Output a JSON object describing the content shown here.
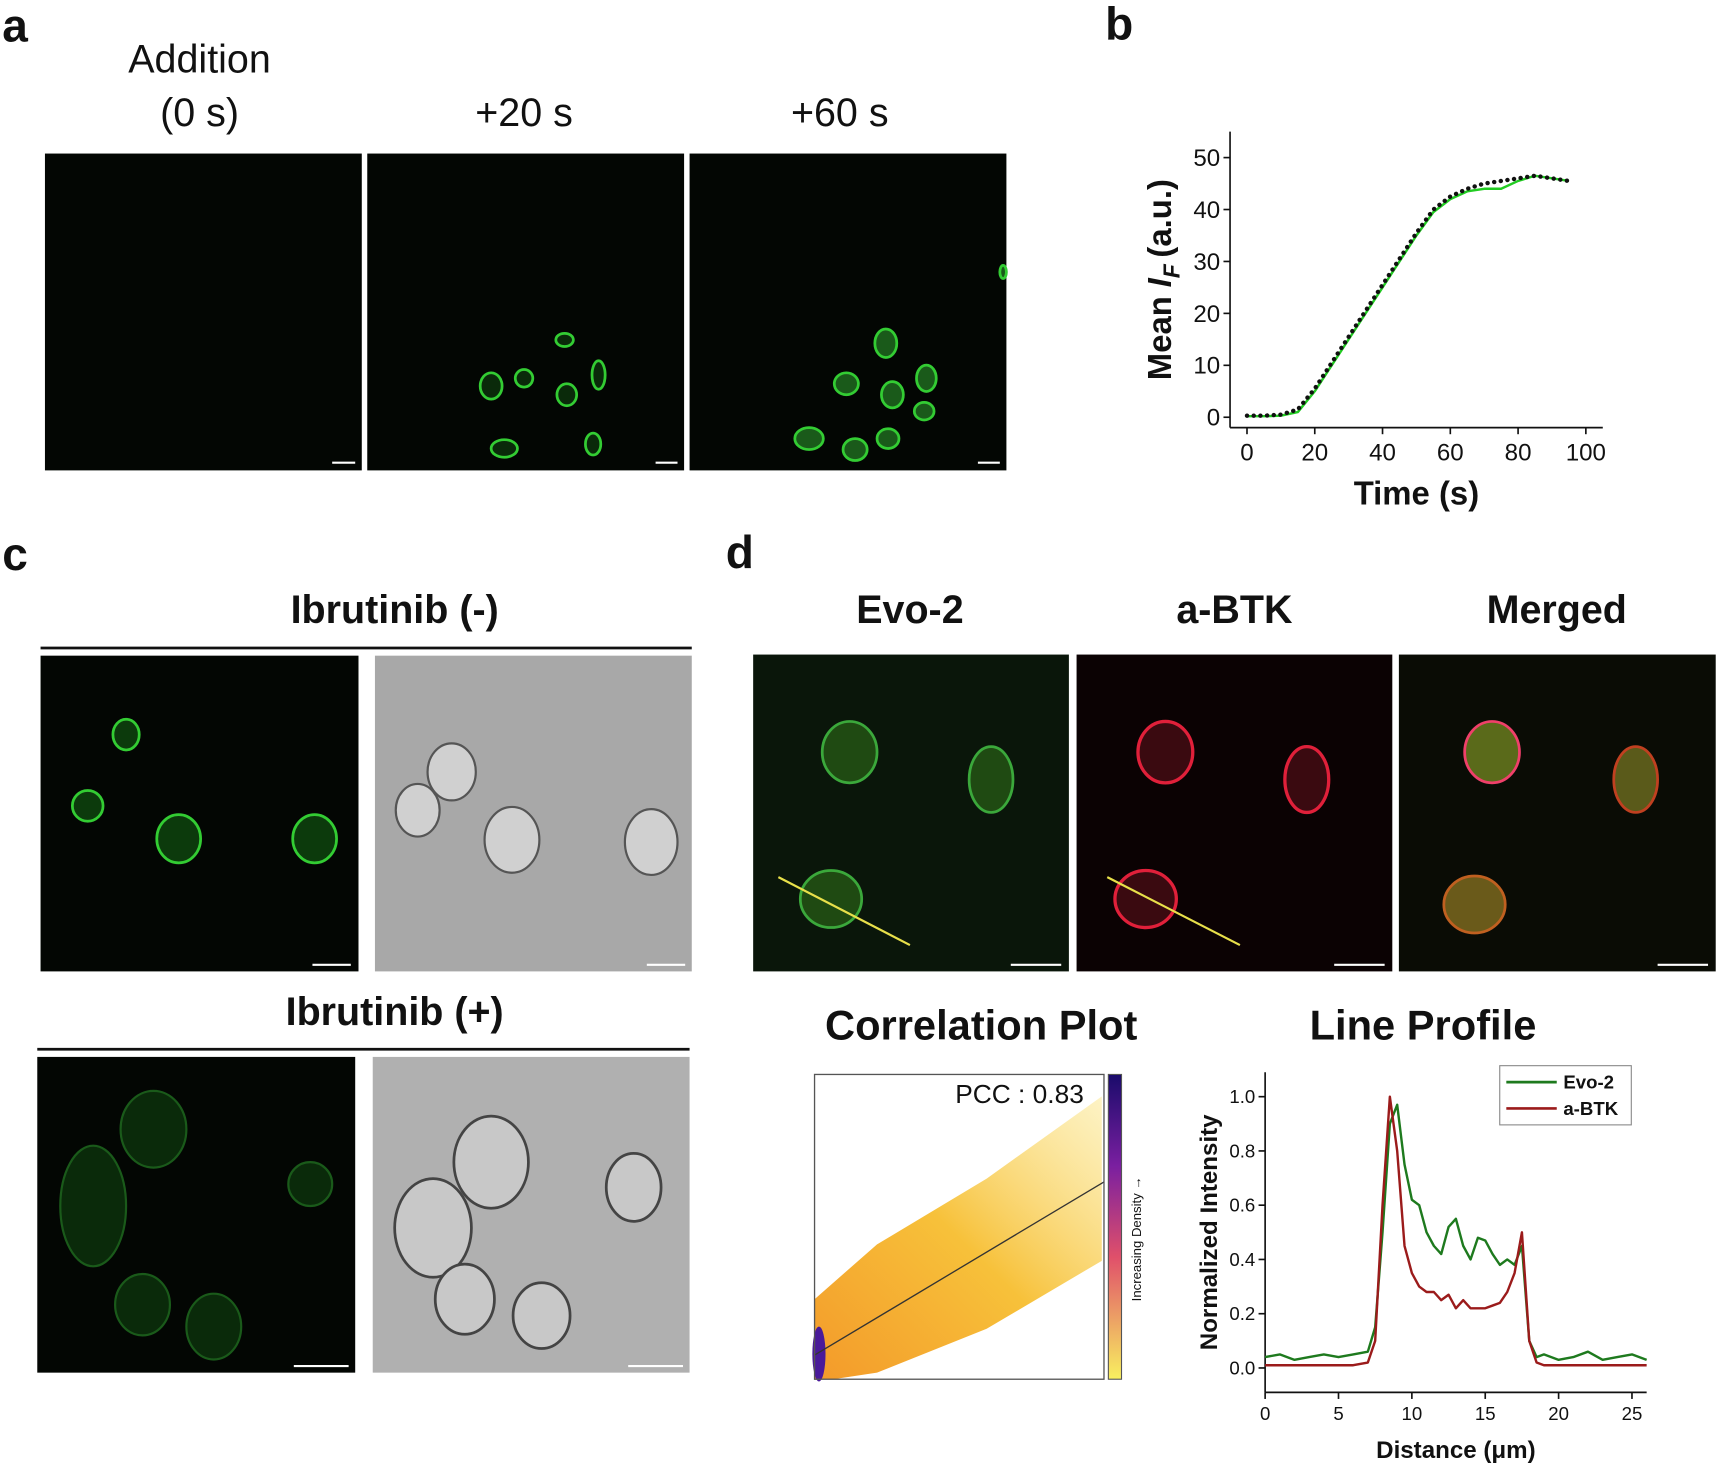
{
  "panel_labels": [
    "a",
    "b",
    "c",
    "d"
  ],
  "panel_a": {
    "titles": [
      [
        "Addition",
        "(0 s)"
      ],
      [
        "+20 s"
      ],
      [
        "+60 s"
      ]
    ]
  },
  "panel_c": {
    "titles": [
      "Ibrutinib (-)",
      "Ibrutinib (+)"
    ]
  },
  "panel_d": {
    "titles": [
      "Evo-2",
      "a-BTK",
      "Merged"
    ],
    "correlation_plot": {
      "title": "Correlation Plot",
      "annotation": "PCC : 0.83",
      "colorbar_label": "Increasing Density →"
    }
  },
  "chart_data": [
    {
      "type": "line",
      "x_label": "Time (s)",
      "y_label": {
        "text": "Mean",
        "symbol": "I",
        "subscript": "F",
        "unit": "(a.u.)"
      },
      "x": [
        0,
        5,
        10,
        15,
        20,
        25,
        30,
        35,
        40,
        45,
        50,
        55,
        60,
        65,
        70,
        75,
        80,
        85,
        90,
        95
      ],
      "series": [
        {
          "color": "#22cc22",
          "values": [
            0.2,
            0.2,
            0.3,
            1,
            5,
            10,
            15,
            20,
            25,
            30,
            35,
            39.5,
            42,
            43.5,
            44,
            44,
            45.5,
            46.5,
            46,
            45.5
          ]
        },
        {
          "color": "#111111",
          "dash": "dotted",
          "values": [
            0.3,
            0.3,
            0.5,
            1.5,
            5.5,
            10.5,
            15.5,
            20.5,
            25.5,
            30.5,
            35.5,
            40,
            42.5,
            44,
            45,
            45.5,
            46,
            46.5,
            46,
            45.5
          ]
        }
      ],
      "xlim": [
        -5,
        105
      ],
      "ylim": [
        -2,
        55
      ],
      "xticks": [
        0,
        20,
        40,
        60,
        80,
        100
      ],
      "yticks": [
        0,
        10,
        20,
        30,
        40,
        50
      ]
    },
    {
      "type": "line",
      "title": "Line Profile",
      "x_label": "Distance (μm)",
      "y_label": "Normalized Intensity",
      "x": [
        0,
        1,
        2,
        3,
        4,
        5,
        6,
        7,
        7.5,
        8,
        8.5,
        9,
        9.5,
        10,
        10.5,
        11,
        11.5,
        12,
        12.5,
        13,
        13.5,
        14,
        14.5,
        15,
        15.5,
        16,
        16.5,
        17,
        17.5,
        18,
        18.5,
        19,
        20,
        21,
        22,
        23,
        24,
        25,
        26
      ],
      "series": [
        {
          "name": "Evo-2",
          "color": "#1e7a1e",
          "values": [
            0.04,
            0.05,
            0.03,
            0.04,
            0.05,
            0.04,
            0.05,
            0.06,
            0.15,
            0.5,
            0.9,
            0.97,
            0.75,
            0.62,
            0.6,
            0.5,
            0.45,
            0.42,
            0.52,
            0.55,
            0.45,
            0.4,
            0.48,
            0.47,
            0.42,
            0.38,
            0.4,
            0.38,
            0.45,
            0.1,
            0.04,
            0.05,
            0.03,
            0.04,
            0.06,
            0.03,
            0.04,
            0.05,
            0.03
          ]
        },
        {
          "name": "a-BTK",
          "color": "#9b1b1b",
          "values": [
            0.01,
            0.01,
            0.01,
            0.01,
            0.01,
            0.01,
            0.01,
            0.02,
            0.1,
            0.6,
            1.0,
            0.8,
            0.45,
            0.35,
            0.3,
            0.28,
            0.28,
            0.25,
            0.27,
            0.22,
            0.25,
            0.22,
            0.22,
            0.22,
            0.23,
            0.24,
            0.28,
            0.35,
            0.5,
            0.1,
            0.02,
            0.01,
            0.01,
            0.01,
            0.01,
            0.01,
            0.01,
            0.01,
            0.01
          ]
        }
      ],
      "xlim": [
        0,
        26
      ],
      "ylim": [
        -0.09,
        1.09
      ],
      "xticks": [
        0,
        5,
        10,
        15,
        20,
        25
      ],
      "yticks": [
        {
          "value": 0,
          "label": "0.0"
        },
        {
          "value": 0.2,
          "label": "0.2"
        },
        {
          "value": 0.4,
          "label": "0.4"
        },
        {
          "value": 0.6,
          "label": "0.6"
        },
        {
          "value": 0.8,
          "label": "0.8"
        },
        {
          "value": 1,
          "label": "1.0"
        }
      ],
      "legend": "upper right"
    }
  ]
}
